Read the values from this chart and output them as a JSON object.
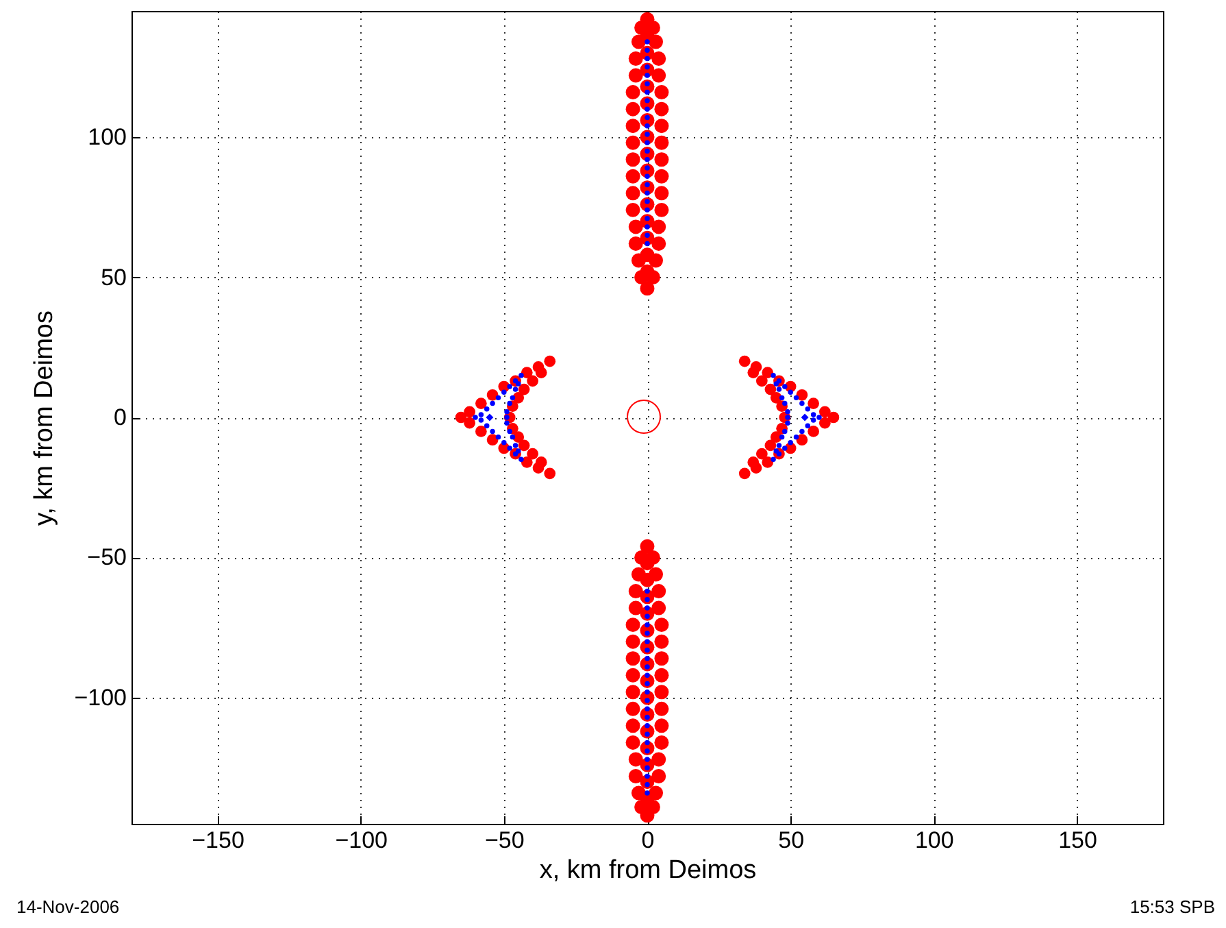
{
  "chart_data": {
    "type": "scatter",
    "marker": "circle",
    "xlabel": "x, km from Deimos",
    "ylabel": "y, km from Deimos",
    "xlim": [
      -180,
      180
    ],
    "ylim": [
      -145,
      145
    ],
    "xticks": [
      -150,
      -100,
      -50,
      0,
      50,
      100,
      150
    ],
    "yticks": [
      -100,
      -50,
      0,
      50,
      100
    ],
    "grid": true,
    "annotations": [
      "14-Nov-2006",
      "15:53 SPB"
    ],
    "series": [
      {
        "color": "#ff0000",
        "x": [
          34,
          38,
          42,
          46,
          50,
          54,
          58,
          62,
          65,
          62,
          58,
          54,
          50,
          46,
          42,
          38,
          34,
          37,
          40,
          43,
          45,
          47,
          48,
          47,
          45,
          43,
          40,
          37
        ],
        "values": [
          20,
          18,
          16,
          13,
          11,
          8,
          5,
          2,
          0,
          -2,
          -5,
          -8,
          -11,
          -13,
          -16,
          -18,
          -20,
          -16,
          -13,
          -10,
          -7,
          -4,
          0,
          4,
          7,
          10,
          13,
          16
        ]
      },
      {
        "color": "#ff0000",
        "x": [
          -34,
          -38,
          -42,
          -46,
          -50,
          -54,
          -58,
          -62,
          -65,
          -62,
          -58,
          -54,
          -50,
          -46,
          -42,
          -38,
          -34,
          -37,
          -40,
          -43,
          -45,
          -47,
          -48,
          -47,
          -45,
          -43,
          -40,
          -37
        ],
        "values": [
          20,
          18,
          16,
          13,
          11,
          8,
          5,
          2,
          0,
          -2,
          -5,
          -8,
          -11,
          -13,
          -16,
          -18,
          -20,
          -16,
          -13,
          -10,
          -7,
          -4,
          0,
          4,
          7,
          10,
          13,
          16
        ]
      },
      {
        "color": "#ff0000",
        "x": [
          0,
          2,
          3,
          4,
          4,
          5,
          5,
          5,
          5,
          5,
          5,
          5,
          5,
          4,
          4,
          3,
          2,
          0,
          -2,
          -3,
          -4,
          -4,
          -5,
          -5,
          -5,
          -5,
          -5,
          -5,
          -5,
          -5,
          -4,
          -4,
          -3,
          -2,
          0,
          0,
          0,
          0,
          0,
          0,
          0,
          0,
          0,
          0,
          0,
          0,
          0,
          0,
          0
        ],
        "values": [
          142,
          139,
          134,
          128,
          122,
          116,
          110,
          104,
          98,
          92,
          86,
          80,
          74,
          68,
          62,
          56,
          50,
          46,
          50,
          56,
          62,
          68,
          74,
          80,
          86,
          92,
          98,
          104,
          110,
          116,
          122,
          128,
          134,
          139,
          52,
          58,
          64,
          70,
          76,
          82,
          88,
          94,
          100,
          106,
          112,
          118,
          124,
          130,
          136
        ]
      },
      {
        "color": "#ff0000",
        "x": [
          0,
          2,
          3,
          4,
          4,
          5,
          5,
          5,
          5,
          5,
          5,
          5,
          5,
          4,
          4,
          3,
          2,
          0,
          -2,
          -3,
          -4,
          -4,
          -5,
          -5,
          -5,
          -5,
          -5,
          -5,
          -5,
          -5,
          -4,
          -4,
          -3,
          -2,
          0,
          0,
          0,
          0,
          0,
          0,
          0,
          0,
          0,
          0,
          0,
          0,
          0,
          0,
          0
        ],
        "values": [
          -142,
          -139,
          -134,
          -128,
          -122,
          -116,
          -110,
          -104,
          -98,
          -92,
          -86,
          -80,
          -74,
          -68,
          -62,
          -56,
          -50,
          -46,
          -50,
          -56,
          -62,
          -68,
          -74,
          -80,
          -86,
          -92,
          -98,
          -104,
          -110,
          -116,
          -122,
          -128,
          -134,
          -139,
          -52,
          -58,
          -64,
          -70,
          -76,
          -82,
          -88,
          -94,
          -100,
          -106,
          -112,
          -118,
          -124,
          -130,
          -136
        ]
      },
      {
        "color": "#0000ff",
        "x": [
          44,
          46,
          48,
          50,
          52,
          54,
          56,
          58,
          60,
          58,
          56,
          54,
          52,
          50,
          48,
          46,
          44,
          45,
          46,
          47,
          48,
          49,
          49,
          49,
          48,
          47,
          46,
          45
        ],
        "values": [
          15,
          13,
          11,
          9,
          7,
          5,
          3,
          1,
          0,
          -1,
          -3,
          -5,
          -7,
          -9,
          -11,
          -13,
          -15,
          -12,
          -10,
          -7,
          -5,
          -2,
          0,
          2,
          5,
          7,
          10,
          12
        ]
      },
      {
        "color": "#0000ff",
        "x": [
          -44,
          -46,
          -48,
          -50,
          -52,
          -54,
          -56,
          -58,
          -60,
          -58,
          -56,
          -54,
          -52,
          -50,
          -48,
          -46,
          -44,
          -45,
          -46,
          -47,
          -48,
          -49,
          -49,
          -49,
          -48,
          -47,
          -46,
          -45
        ],
        "values": [
          15,
          13,
          11,
          9,
          7,
          5,
          3,
          1,
          0,
          -1,
          -3,
          -5,
          -7,
          -9,
          -11,
          -13,
          -15,
          -12,
          -10,
          -7,
          -5,
          -2,
          0,
          2,
          5,
          7,
          10,
          12
        ]
      },
      {
        "color": "#0000ff",
        "x": [
          0,
          0,
          0,
          0,
          0,
          0,
          0,
          0,
          0,
          0,
          0,
          0,
          0,
          0,
          0,
          0,
          0,
          0,
          0,
          0,
          0,
          0,
          0,
          0,
          0
        ],
        "values": [
          62,
          65,
          68,
          71,
          74,
          77,
          80,
          83,
          86,
          89,
          92,
          95,
          98,
          101,
          104,
          107,
          110,
          113,
          116,
          119,
          122,
          125,
          128,
          131,
          134
        ]
      },
      {
        "color": "#0000ff",
        "x": [
          0,
          0,
          0,
          0,
          0,
          0,
          0,
          0,
          0,
          0,
          0,
          0,
          0,
          0,
          0,
          0,
          0,
          0,
          0,
          0,
          0,
          0,
          0,
          0,
          0
        ],
        "values": [
          -62,
          -65,
          -68,
          -71,
          -74,
          -77,
          -80,
          -83,
          -86,
          -89,
          -92,
          -95,
          -98,
          -101,
          -104,
          -107,
          -110,
          -113,
          -116,
          -119,
          -122,
          -125,
          -128,
          -131,
          -134
        ]
      },
      {
        "color": "#0000ff",
        "marker": "diamond",
        "x": [
          55,
          -55
        ],
        "values": [
          0,
          0
        ]
      }
    ]
  }
}
